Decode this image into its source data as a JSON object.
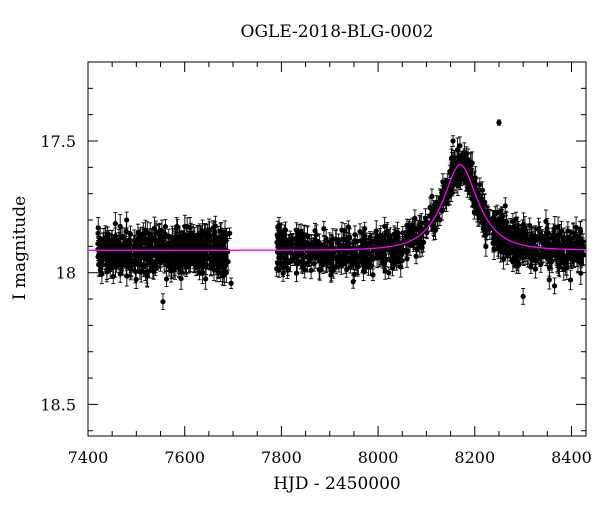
{
  "chart_data": {
    "type": "scatter",
    "title": "OGLE-2018-BLG-0002",
    "xlabel": "HJD - 2450000",
    "ylabel": "I magnitude",
    "xlim": [
      7400,
      8430
    ],
    "ylim": [
      18.62,
      17.2
    ],
    "y_inverted": true,
    "grid": false,
    "xticks": [
      7400,
      7600,
      7800,
      8000,
      8200,
      8400
    ],
    "xtick_labels": [
      "7400",
      "7600",
      "7800",
      "8000",
      "8200",
      "8400"
    ],
    "yticks": [
      17.5,
      18,
      18.5
    ],
    "ytick_labels": [
      "17.5",
      "18",
      "18.5"
    ],
    "series": [
      {
        "type": "line",
        "color": "#ff00ff",
        "model": {
          "kind": "microlensing",
          "t0": 8170,
          "tE": 62,
          "u0": 0.5,
          "baseline_mag": 17.915,
          "peak_mag": 17.59
        },
        "x": [
          7400,
          7700,
          7900,
          8000,
          8050,
          8100,
          8130,
          8150,
          8170,
          8190,
          8210,
          8240,
          8270,
          8300,
          8350,
          8430
        ],
        "y": [
          17.915,
          17.915,
          17.913,
          17.905,
          17.89,
          17.82,
          17.72,
          17.64,
          17.59,
          17.64,
          17.72,
          17.81,
          17.86,
          17.89,
          17.905,
          17.912
        ]
      },
      {
        "type": "errorbar-scatter",
        "color": "#000000",
        "segments": [
          {
            "x_start": 7420,
            "x_end": 7690,
            "n": 600,
            "mag_center": 17.92,
            "mag_scatter": 0.06,
            "error": 0.035
          },
          {
            "x_start": 7790,
            "x_end": 8050,
            "n": 420,
            "mag_center": 17.92,
            "mag_scatter": 0.055,
            "error": 0.03
          },
          {
            "x_start": 8050,
            "x_end": 8150,
            "n": 120,
            "follows_model": true,
            "mag_scatter": 0.045,
            "error": 0.03
          },
          {
            "x_start": 8150,
            "x_end": 8425,
            "n": 520,
            "follows_model": true,
            "mag_scatter": 0.055,
            "error": 0.035
          }
        ],
        "outliers": [
          {
            "x": 8250,
            "y": 17.43,
            "error": 0.01
          },
          {
            "x": 7696,
            "y": 18.04,
            "error": 0.02
          },
          {
            "x": 7693,
            "y": 17.85,
            "error": 0.02
          },
          {
            "x": 7555,
            "y": 18.11,
            "error": 0.03
          },
          {
            "x": 7480,
            "y": 17.8,
            "error": 0.03
          },
          {
            "x": 7795,
            "y": 17.82,
            "error": 0.03
          },
          {
            "x": 8300,
            "y": 18.09,
            "error": 0.03
          },
          {
            "x": 8365,
            "y": 18.05,
            "error": 0.03
          },
          {
            "x": 8155,
            "y": 17.5,
            "error": 0.02
          }
        ]
      }
    ]
  }
}
